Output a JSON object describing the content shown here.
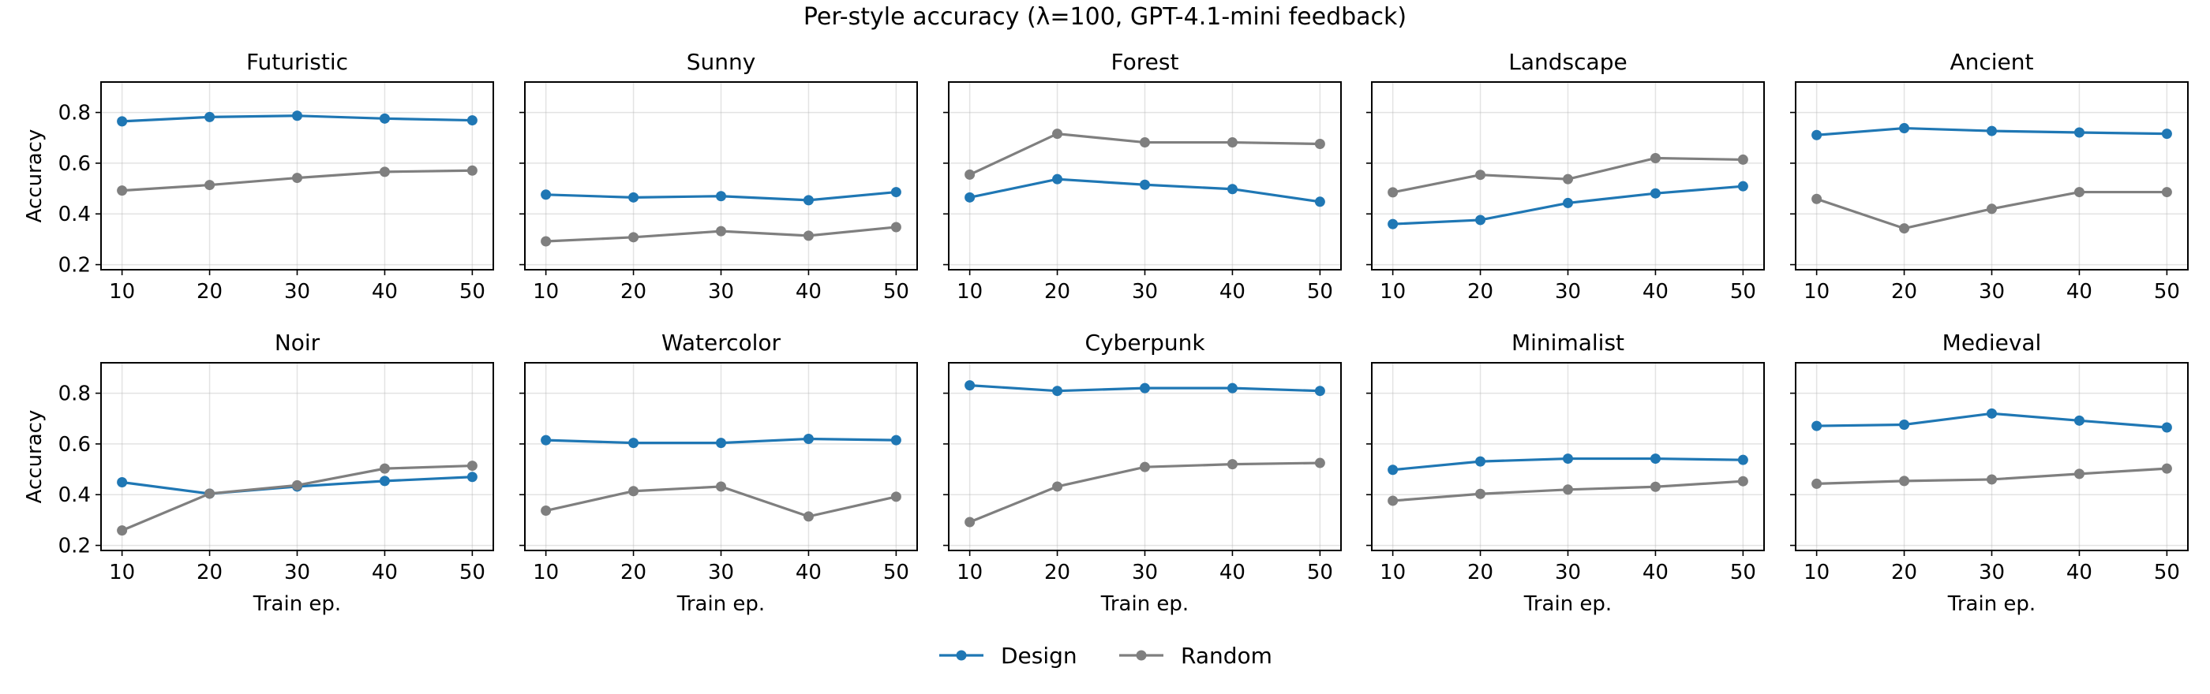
{
  "chart_data": {
    "type": "line",
    "title": "Per-style accuracy (λ=100, GPT-4.1-mini feedback)",
    "x": [
      10,
      20,
      30,
      40,
      50
    ],
    "xticks": [
      10,
      20,
      30,
      40,
      50
    ],
    "xlim": [
      7.6,
      52.4
    ],
    "ylim": [
      0.18,
      0.92
    ],
    "yticks": [
      0.2,
      0.4,
      0.6,
      0.8
    ],
    "ytick_labels": [
      "0.2",
      "0.4",
      "0.6",
      "0.8"
    ],
    "xlabel": "Train ep.",
    "ylabel": "Accuracy",
    "grid": true,
    "legend_position": "bottom-center",
    "series_styles": [
      {
        "name": "Design",
        "color": "#1f77b4"
      },
      {
        "name": "Random",
        "color": "#7f7f7f"
      }
    ],
    "subplots": [
      {
        "title": "Futuristic",
        "series": [
          {
            "name": "Design",
            "values": [
              0.765,
              0.782,
              0.787,
              0.776,
              0.769
            ]
          },
          {
            "name": "Random",
            "values": [
              0.492,
              0.514,
              0.542,
              0.566,
              0.571
            ]
          }
        ]
      },
      {
        "title": "Sunny",
        "series": [
          {
            "name": "Design",
            "values": [
              0.476,
              0.465,
              0.47,
              0.454,
              0.486
            ]
          },
          {
            "name": "Random",
            "values": [
              0.292,
              0.308,
              0.332,
              0.314,
              0.348
            ]
          }
        ]
      },
      {
        "title": "Forest",
        "series": [
          {
            "name": "Design",
            "values": [
              0.465,
              0.537,
              0.515,
              0.498,
              0.448
            ]
          },
          {
            "name": "Random",
            "values": [
              0.555,
              0.716,
              0.682,
              0.682,
              0.676
            ]
          }
        ]
      },
      {
        "title": "Landscape",
        "series": [
          {
            "name": "Design",
            "values": [
              0.36,
              0.376,
              0.443,
              0.481,
              0.509
            ]
          },
          {
            "name": "Random",
            "values": [
              0.485,
              0.554,
              0.537,
              0.62,
              0.614
            ]
          }
        ]
      },
      {
        "title": "Ancient",
        "series": [
          {
            "name": "Design",
            "values": [
              0.711,
              0.738,
              0.727,
              0.721,
              0.716
            ]
          },
          {
            "name": "Random",
            "values": [
              0.459,
              0.343,
              0.42,
              0.486,
              0.486
            ]
          }
        ]
      },
      {
        "title": "Noir",
        "series": [
          {
            "name": "Design",
            "values": [
              0.449,
              0.404,
              0.432,
              0.454,
              0.47
            ]
          },
          {
            "name": "Random",
            "values": [
              0.259,
              0.404,
              0.437,
              0.503,
              0.514
            ]
          }
        ]
      },
      {
        "title": "Watercolor",
        "series": [
          {
            "name": "Design",
            "values": [
              0.615,
              0.604,
              0.604,
              0.62,
              0.615
            ]
          },
          {
            "name": "Random",
            "values": [
              0.337,
              0.414,
              0.432,
              0.314,
              0.392
            ]
          }
        ]
      },
      {
        "title": "Cyberpunk",
        "series": [
          {
            "name": "Design",
            "values": [
              0.831,
              0.809,
              0.82,
              0.82,
              0.809
            ]
          },
          {
            "name": "Random",
            "values": [
              0.292,
              0.432,
              0.509,
              0.52,
              0.525
            ]
          }
        ]
      },
      {
        "title": "Minimalist",
        "series": [
          {
            "name": "Design",
            "values": [
              0.498,
              0.531,
              0.542,
              0.542,
              0.537
            ]
          },
          {
            "name": "Random",
            "values": [
              0.376,
              0.403,
              0.42,
              0.431,
              0.453
            ]
          }
        ]
      },
      {
        "title": "Medieval",
        "series": [
          {
            "name": "Design",
            "values": [
              0.671,
              0.676,
              0.72,
              0.692,
              0.665
            ]
          },
          {
            "name": "Random",
            "values": [
              0.443,
              0.454,
              0.46,
              0.482,
              0.503
            ]
          }
        ]
      }
    ]
  }
}
